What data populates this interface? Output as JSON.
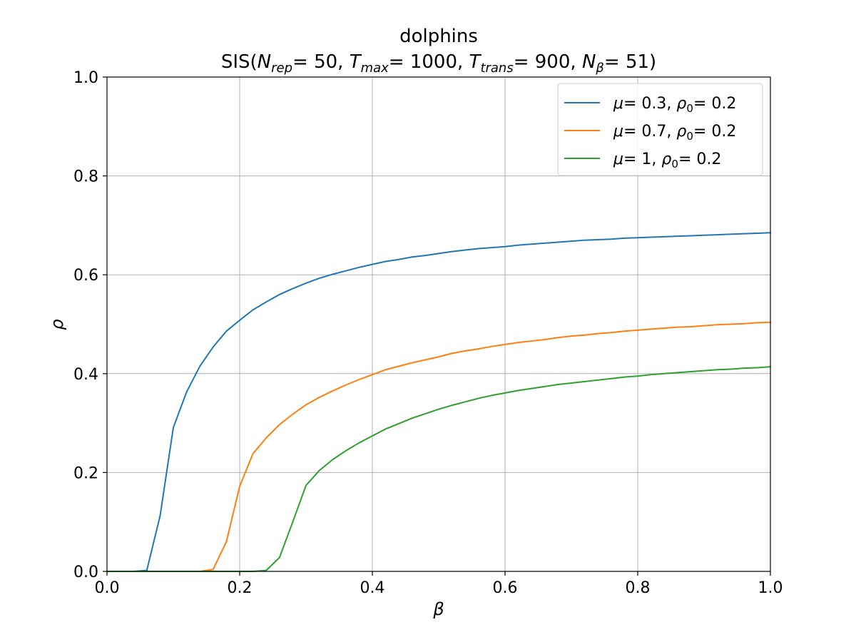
{
  "chart_data": {
    "type": "line",
    "title_line1": "dolphins",
    "title_line2": {
      "prefix": "SIS(",
      "n_rep_symbol": "N",
      "n_rep_sub": "rep",
      "n_rep_value": "= 50, ",
      "t_max_symbol": "T",
      "t_max_sub": "max",
      "t_max_value": "= 1000, ",
      "t_trans_symbol": "T",
      "t_trans_sub": "trans",
      "t_trans_value": "= 900, ",
      "n_beta_symbol": "N",
      "n_beta_sub": "β",
      "n_beta_value": "= 51)"
    },
    "xlabel": "β",
    "ylabel": "ρ",
    "xlim": [
      0,
      1
    ],
    "ylim": [
      0,
      1
    ],
    "xticks": [
      "0.0",
      "0.2",
      "0.4",
      "0.6",
      "0.8",
      "1.0"
    ],
    "yticks": [
      "0.0",
      "0.2",
      "0.4",
      "0.6",
      "0.8",
      "1.0"
    ],
    "grid": true,
    "legend_position": "top-right",
    "x": [
      0.0,
      0.02,
      0.04,
      0.06,
      0.08,
      0.1,
      0.12,
      0.14,
      0.16,
      0.18,
      0.2,
      0.22,
      0.24,
      0.26,
      0.28,
      0.3,
      0.32,
      0.34,
      0.36,
      0.38,
      0.4,
      0.42,
      0.44,
      0.46,
      0.48,
      0.5,
      0.52,
      0.54,
      0.56,
      0.58,
      0.6,
      0.62,
      0.64,
      0.66,
      0.68,
      0.7,
      0.72,
      0.74,
      0.76,
      0.78,
      0.8,
      0.82,
      0.84,
      0.86,
      0.88,
      0.9,
      0.92,
      0.94,
      0.96,
      0.98,
      1.0
    ],
    "series": [
      {
        "name": "μ= 0.3, ρ0= 0.2",
        "legend": {
          "mu_symbol": "μ",
          "mu_value": "= 0.3, ",
          "rho_symbol": "ρ",
          "rho_sub": "0",
          "rho_value": "= 0.2"
        },
        "color": "#1f77b4",
        "values": [
          0.0,
          0.0,
          0.0,
          0.002,
          0.112,
          0.291,
          0.363,
          0.415,
          0.454,
          0.486,
          0.508,
          0.529,
          0.545,
          0.56,
          0.572,
          0.583,
          0.593,
          0.601,
          0.608,
          0.615,
          0.621,
          0.627,
          0.631,
          0.636,
          0.639,
          0.643,
          0.647,
          0.65,
          0.653,
          0.655,
          0.657,
          0.66,
          0.662,
          0.664,
          0.666,
          0.668,
          0.67,
          0.671,
          0.672,
          0.674,
          0.675,
          0.676,
          0.677,
          0.678,
          0.679,
          0.68,
          0.681,
          0.682,
          0.683,
          0.684,
          0.685
        ]
      },
      {
        "name": "μ= 0.7, ρ0= 0.2",
        "legend": {
          "mu_symbol": "μ",
          "mu_value": "= 0.7, ",
          "rho_symbol": "ρ",
          "rho_sub": "0",
          "rho_value": "= 0.2"
        },
        "color": "#ff7f0e",
        "values": [
          0.0,
          0.0,
          0.0,
          0.0,
          0.0,
          0.0,
          0.0,
          0.0,
          0.004,
          0.06,
          0.172,
          0.238,
          0.27,
          0.297,
          0.318,
          0.337,
          0.352,
          0.365,
          0.377,
          0.388,
          0.398,
          0.408,
          0.415,
          0.422,
          0.428,
          0.434,
          0.441,
          0.446,
          0.45,
          0.455,
          0.459,
          0.463,
          0.466,
          0.469,
          0.473,
          0.476,
          0.478,
          0.481,
          0.483,
          0.486,
          0.488,
          0.49,
          0.492,
          0.494,
          0.495,
          0.497,
          0.499,
          0.5,
          0.501,
          0.503,
          0.504
        ]
      },
      {
        "name": "μ= 1, ρ0= 0.2",
        "legend": {
          "mu_symbol": "μ",
          "mu_value": "= 1, ",
          "rho_symbol": "ρ",
          "rho_sub": "0",
          "rho_value": "= 0.2"
        },
        "color": "#2ca02c",
        "values": [
          0.0,
          0.0,
          0.0,
          0.0,
          0.0,
          0.0,
          0.0,
          0.0,
          0.0,
          0.0,
          0.0,
          0.0,
          0.002,
          0.028,
          0.1,
          0.174,
          0.204,
          0.226,
          0.244,
          0.26,
          0.274,
          0.288,
          0.299,
          0.31,
          0.319,
          0.328,
          0.336,
          0.343,
          0.35,
          0.356,
          0.361,
          0.366,
          0.37,
          0.374,
          0.378,
          0.381,
          0.384,
          0.387,
          0.39,
          0.393,
          0.395,
          0.398,
          0.4,
          0.402,
          0.404,
          0.406,
          0.408,
          0.409,
          0.411,
          0.412,
          0.414
        ]
      }
    ]
  }
}
